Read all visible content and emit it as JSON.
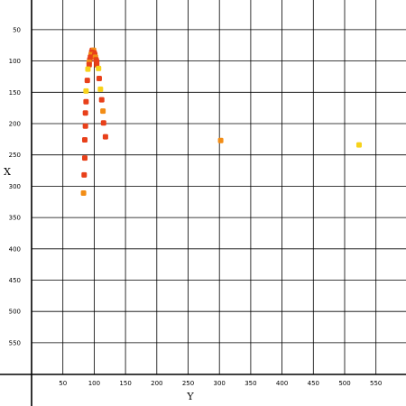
{
  "chart_data": {
    "type": "scatter",
    "title": "",
    "xlabel": "Y",
    "ylabel": "X",
    "xlim": [
      0,
      590
    ],
    "ylim": [
      20,
      600
    ],
    "y_inverted": true,
    "grid": true,
    "legend": "none",
    "x_ticks": [
      "50",
      "100",
      "150",
      "200",
      "250",
      "300",
      "350",
      "400",
      "450",
      "500",
      "550"
    ],
    "y_ticks": [
      "50",
      "100",
      "150",
      "200",
      "250",
      "300",
      "350",
      "400",
      "450",
      "500",
      "550"
    ],
    "colors": {
      "red": "#e8401a",
      "orange": "#f28d16",
      "yellow": "#f7d21a"
    },
    "points": [
      {
        "x": 97,
        "y": 83,
        "color": "#e8401a"
      },
      {
        "x": 99,
        "y": 83,
        "color": "#f28d16"
      },
      {
        "x": 96,
        "y": 86,
        "color": "#e8401a"
      },
      {
        "x": 100,
        "y": 87,
        "color": "#e8401a"
      },
      {
        "x": 95,
        "y": 90,
        "color": "#f28d16"
      },
      {
        "x": 101,
        "y": 90,
        "color": "#e8401a"
      },
      {
        "x": 94,
        "y": 94,
        "color": "#e8401a"
      },
      {
        "x": 102,
        "y": 94,
        "color": "#f28d16"
      },
      {
        "x": 93,
        "y": 98,
        "color": "#e8401a"
      },
      {
        "x": 103,
        "y": 98,
        "color": "#e8401a"
      },
      {
        "x": 92,
        "y": 102,
        "color": "#f28d16"
      },
      {
        "x": 104,
        "y": 101,
        "color": "#e8401a"
      },
      {
        "x": 92,
        "y": 106,
        "color": "#e8401a"
      },
      {
        "x": 104,
        "y": 106,
        "color": "#e8401a"
      },
      {
        "x": 90,
        "y": 113,
        "color": "#f7d21a"
      },
      {
        "x": 107,
        "y": 112,
        "color": "#f7d21a"
      },
      {
        "x": 89,
        "y": 131,
        "color": "#e8401a"
      },
      {
        "x": 108,
        "y": 128,
        "color": "#e8401a"
      },
      {
        "x": 87,
        "y": 148,
        "color": "#f7d21a"
      },
      {
        "x": 110,
        "y": 145,
        "color": "#f7d21a"
      },
      {
        "x": 87,
        "y": 165,
        "color": "#e8401a"
      },
      {
        "x": 112,
        "y": 162,
        "color": "#e8401a"
      },
      {
        "x": 86,
        "y": 183,
        "color": "#e8401a"
      },
      {
        "x": 114,
        "y": 180,
        "color": "#f28d16"
      },
      {
        "x": 86,
        "y": 204,
        "color": "#e8401a"
      },
      {
        "x": 115,
        "y": 199,
        "color": "#e8401a"
      },
      {
        "x": 85,
        "y": 226,
        "color": "#e8401a"
      },
      {
        "x": 118,
        "y": 221,
        "color": "#e8401a"
      },
      {
        "x": 85,
        "y": 255,
        "color": "#e8401a"
      },
      {
        "x": 84,
        "y": 282,
        "color": "#e8401a"
      },
      {
        "x": 83,
        "y": 311,
        "color": "#f28d16"
      },
      {
        "x": 302,
        "y": 227,
        "color": "#f28d16"
      },
      {
        "x": 523,
        "y": 234,
        "color": "#f7d21a"
      }
    ]
  }
}
